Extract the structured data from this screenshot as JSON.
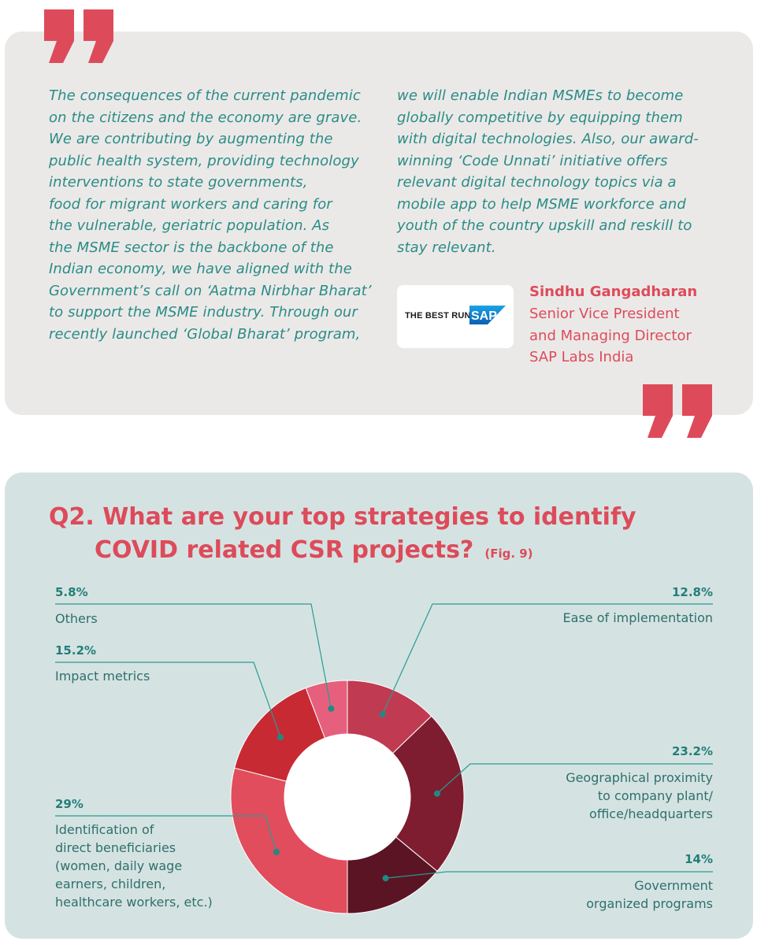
{
  "quote": {
    "left_lines": [
      "The consequences of the current pandemic",
      "on the citizens and the economy are grave.",
      "We are contributing by augmenting the",
      "public health system, providing technology",
      "interventions to state governments,",
      "food for migrant workers and caring for",
      "the vulnerable, geriatric population. As",
      "the MSME sector is the backbone of the",
      "Indian economy, we have aligned with the",
      "Government’s call on ‘Aatma Nirbhar Bharat’",
      "to support the MSME industry. Through our",
      "recently launched ‘Global Bharat’ program,"
    ],
    "right_lines": [
      "we will enable Indian MSMEs to become",
      "globally competitive by equipping them",
      "with digital technologies. Also, our award-",
      "winning ‘Code Unnati’ initiative offers",
      "relevant digital technology topics via a",
      "mobile app to help MSME workforce and",
      "youth of the country upskill and reskill to",
      "stay relevant."
    ],
    "logo_text": "THE BEST RUN",
    "logo_badge": "SAP",
    "author_name": "Sindhu Gangadharan",
    "author_title_1": "Senior Vice President",
    "author_title_2": "and Managing Director",
    "author_org": "SAP Labs India"
  },
  "colors": {
    "accent_red": "#dd4b5a",
    "teal_text": "#2a8c86",
    "card_gray": "#ebe9e8",
    "card_teal": "#d4e3e2"
  },
  "chart_data": {
    "type": "pie",
    "variant": "donut",
    "title_line1": "Q2. What are your top strategies to identify",
    "title_line2": "COVID related CSR projects?",
    "figure_ref": "(Fig. 9)",
    "slices": [
      {
        "label": "Ease of implementation",
        "value": 12.8,
        "value_label": "12.8%",
        "color": "#c03a52"
      },
      {
        "label": "Geographical proximity to company plant/ office/headquarters",
        "value": 23.2,
        "value_label": "23.2%",
        "color": "#7f1d30"
      },
      {
        "label": "Government organized programs",
        "value": 14,
        "value_label": "14%",
        "color": "#5b1424"
      },
      {
        "label": "Identification of direct beneficiaries (women, daily wage earners, children, healthcare workers, etc.)",
        "value": 29,
        "value_label": "29%",
        "color": "#e14d5c"
      },
      {
        "label": "Impact metrics",
        "value": 15.2,
        "value_label": "15.2%",
        "color": "#c72a33"
      },
      {
        "label": "Others",
        "value": 5.8,
        "value_label": "5.8%",
        "color": "#e6607e"
      }
    ],
    "label_lines": {
      "ease": [
        "Ease of implementation"
      ],
      "geo": [
        "Geographical proximity",
        "to company plant/",
        "office/headquarters"
      ],
      "gov": [
        "Government",
        "organized programs"
      ],
      "ident": [
        "Identification of",
        "direct beneficiaries",
        "(women, daily wage",
        "earners, children,",
        "healthcare workers, etc.)"
      ],
      "impact": [
        "Impact metrics"
      ],
      "others": [
        "Others"
      ]
    }
  }
}
